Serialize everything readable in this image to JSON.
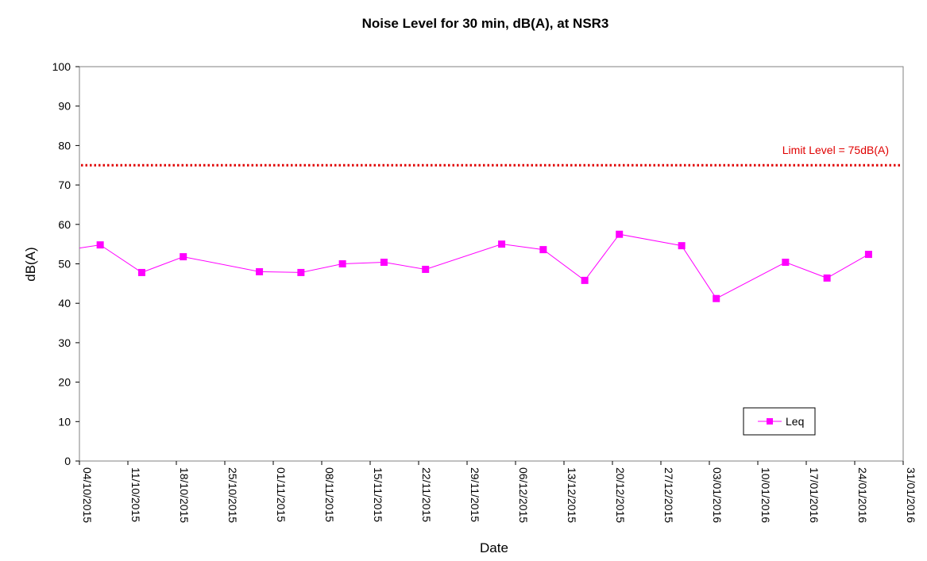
{
  "chart_data": {
    "type": "line",
    "title": "Noise Level for 30 min, dB(A), at NSR3",
    "xlabel": "Date",
    "ylabel": "dB(A)",
    "ylim": [
      0,
      100
    ],
    "yticks": [
      0,
      10,
      20,
      30,
      40,
      50,
      60,
      70,
      80,
      90,
      100
    ],
    "xlim": [
      "2015-10-04",
      "2016-01-31"
    ],
    "xtick_labels": [
      "04/10/2015",
      "11/10/2015",
      "18/10/2015",
      "25/10/2015",
      "01/11/2015",
      "08/11/2015",
      "15/11/2015",
      "22/11/2015",
      "29/11/2015",
      "06/12/2015",
      "13/12/2015",
      "20/12/2015",
      "27/12/2015",
      "03/01/2016",
      "10/01/2016",
      "17/01/2016",
      "24/01/2016",
      "31/01/2016"
    ],
    "grid": false,
    "legend_position": "bottom-right",
    "series": [
      {
        "name": "Leq",
        "color": "#ff00ff",
        "marker": "square",
        "x": [
          "2015-10-07",
          "2015-10-13",
          "2015-10-19",
          "2015-10-30",
          "2015-11-05",
          "2015-11-11",
          "2015-11-17",
          "2015-11-23",
          "2015-12-04",
          "2015-12-10",
          "2015-12-16",
          "2015-12-21",
          "2015-12-30",
          "2016-01-04",
          "2016-01-14",
          "2016-01-20",
          "2016-01-26"
        ],
        "values": [
          54.8,
          47.8,
          51.8,
          48.0,
          47.8,
          50.0,
          50.4,
          48.6,
          55.0,
          53.6,
          45.8,
          57.5,
          54.6,
          41.2,
          50.4,
          46.4,
          52.4
        ]
      }
    ],
    "reference_line": {
      "value": 75,
      "label": "Limit Level = 75dB(A)",
      "color": "#e00000",
      "style": "dotted"
    }
  }
}
